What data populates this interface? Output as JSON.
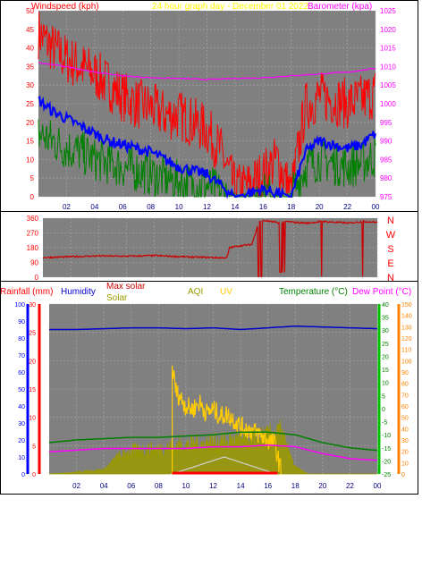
{
  "colors": {
    "plot_bg": "#808080",
    "grid": "#a8a8a8",
    "wind_speed": "#ff0000",
    "wind_avg": "#008000",
    "wind_blue": "#0000ff",
    "barometer": "#ff00ff",
    "direction": "#cc0000",
    "rainfall": "#ff0000",
    "humidity": "#0000cc",
    "temperature": "#008000",
    "dew_point": "#ff8000",
    "solar": "#9a9a00",
    "max_solar": "#ff0000",
    "uv": "#ffcc00",
    "aqi": "#c8c800"
  },
  "chart_data": [
    {
      "type": "line",
      "title": "24 hour graph day - December 01 2022",
      "ylabel": "Windspeed (kph)",
      "y2label": "Barometer (kpa)",
      "x_ticks": [
        "02",
        "04",
        "06",
        "08",
        "10",
        "12",
        "14",
        "16",
        "18",
        "20",
        "22",
        "00"
      ],
      "ylim": [
        0,
        50
      ],
      "y_ticks": [
        "0",
        "5",
        "10",
        "15",
        "20",
        "25",
        "30",
        "35",
        "40",
        "45",
        "50"
      ],
      "y2lim": [
        975,
        1025
      ],
      "y2_ticks": [
        "975",
        "980",
        "985",
        "990",
        "995",
        "1000",
        "1005",
        "1010",
        "1015",
        "1020",
        "1025"
      ],
      "grid": true,
      "series": [
        {
          "key": "gust",
          "hours": [
            0,
            1,
            2,
            3,
            4,
            5,
            6,
            7,
            8,
            9,
            10,
            11,
            12,
            13,
            14,
            15,
            16,
            17,
            18,
            19,
            20,
            21,
            22,
            23,
            24
          ],
          "values": [
            44,
            40,
            37,
            35,
            33,
            30,
            27,
            25,
            24,
            22,
            22,
            20,
            18,
            12,
            2,
            3,
            6,
            10,
            1,
            24,
            27,
            26,
            25,
            26,
            28
          ]
        },
        {
          "key": "avg_blue",
          "hours": [
            0,
            1,
            2,
            3,
            4,
            5,
            6,
            7,
            8,
            9,
            10,
            11,
            12,
            13,
            14,
            15,
            16,
            17,
            18,
            19,
            20,
            21,
            22,
            23,
            24
          ],
          "values": [
            26,
            23,
            21,
            19,
            17,
            15,
            14,
            13,
            12,
            10,
            8,
            7,
            6,
            3,
            0,
            1,
            2,
            1,
            0,
            12,
            15,
            14,
            13,
            14,
            17
          ]
        },
        {
          "key": "avg_green",
          "hours": [
            0,
            1,
            2,
            3,
            4,
            5,
            6,
            7,
            8,
            9,
            10,
            11,
            12,
            13,
            14,
            15,
            16,
            17,
            18,
            19,
            20,
            21,
            22,
            23,
            24
          ],
          "values": [
            17,
            15,
            13,
            12,
            10,
            9,
            8,
            7,
            6,
            5,
            4,
            3,
            3,
            1,
            0,
            0,
            1,
            0,
            0,
            8,
            10,
            9,
            8,
            9,
            11
          ]
        },
        {
          "key": "barometer",
          "hours": [
            0,
            2,
            4,
            6,
            8,
            10,
            12,
            14,
            16,
            18,
            20,
            22,
            24
          ],
          "values": [
            1011,
            1010,
            1008.5,
            1007.5,
            1007,
            1006.8,
            1006.5,
            1006.8,
            1007,
            1007.5,
            1008,
            1008.5,
            1009.5
          ]
        }
      ]
    },
    {
      "type": "scatter",
      "y_ticks": [
        "0",
        "90",
        "180",
        "270",
        "360"
      ],
      "compass": [
        "N",
        "W",
        "S",
        "E",
        "N"
      ],
      "ylim": [
        0,
        360
      ],
      "series": [
        {
          "key": "direction",
          "hours": [
            0,
            2,
            4,
            6,
            8,
            10,
            12,
            13.2,
            13.4,
            14,
            15,
            15.5,
            16,
            17,
            17.5,
            18,
            19,
            20,
            21,
            22,
            23,
            24
          ],
          "values": [
            120,
            125,
            130,
            128,
            132,
            125,
            120,
            118,
            180,
            190,
            200,
            340,
            345,
            330,
            340,
            335,
            330,
            340,
            335,
            330,
            340,
            335
          ]
        }
      ]
    },
    {
      "type": "line",
      "y_axes": [
        {
          "label": "Rainfall (mm)",
          "ticks": [
            "0",
            "10",
            "20",
            "30",
            "40",
            "50",
            "60",
            "70",
            "80",
            "90",
            "100"
          ],
          "lim": [
            0,
            100
          ]
        },
        {
          "label": "Humidity",
          "ticks": [
            "0",
            "5",
            "10",
            "15",
            "20",
            "25",
            "30"
          ],
          "lim": [
            0,
            30
          ]
        },
        {
          "label": "Temperature (°C)",
          "ticks": [
            "-25",
            "-20",
            "-15",
            "-10",
            "-5",
            "0",
            "5",
            "10",
            "15",
            "20",
            "25",
            "30",
            "35",
            "40"
          ],
          "lim": [
            -25,
            40
          ]
        },
        {
          "label": "Dew Point (°C)",
          "ticks": [
            "0",
            "10",
            "20",
            "30",
            "40",
            "50",
            "60",
            "70",
            "80",
            "90",
            "100",
            "110",
            "120",
            "130",
            "140",
            "150"
          ],
          "lim": [
            0,
            150
          ]
        }
      ],
      "legend": [
        "Max solar",
        "Solar",
        "AQI",
        "UV"
      ],
      "x_ticks": [
        "02",
        "04",
        "06",
        "08",
        "10",
        "12",
        "14",
        "16",
        "18",
        "20",
        "22",
        "00"
      ],
      "series": [
        {
          "key": "humidity",
          "hours": [
            0,
            2,
            4,
            6,
            8,
            10,
            12,
            14,
            16,
            18,
            20,
            22,
            24
          ],
          "values": [
            85,
            85,
            85.5,
            86,
            86,
            85.5,
            86,
            85,
            86,
            87,
            86.5,
            86,
            85.5
          ]
        },
        {
          "key": "temperature",
          "hours": [
            0,
            2,
            4,
            6,
            8,
            10,
            12,
            14,
            16,
            18,
            20,
            22,
            24
          ],
          "values": [
            -13,
            -12,
            -11.5,
            -11,
            -11,
            -10.5,
            -10,
            -9,
            -9,
            -10,
            -13,
            -15,
            -16
          ]
        },
        {
          "key": "dew_point",
          "hours": [
            0,
            2,
            4,
            6,
            8,
            10,
            12,
            14,
            16,
            18,
            20,
            22,
            24
          ],
          "values": [
            13,
            14,
            15,
            15,
            15,
            15,
            16,
            16,
            17,
            16,
            12,
            9,
            8
          ]
        },
        {
          "key": "solar",
          "hours": [
            0,
            4,
            5,
            6,
            8,
            10,
            12,
            14,
            16,
            17,
            17.5,
            18,
            19,
            24
          ],
          "values": [
            0,
            2,
            8,
            11,
            12,
            14,
            15,
            16,
            18,
            20,
            10,
            3,
            0,
            0
          ]
        },
        {
          "key": "max_solar",
          "hours": [
            8.9,
            9.0,
            12.8,
            16.6,
            16.7
          ],
          "values": [
            0,
            0,
            10,
            0,
            0
          ]
        },
        {
          "key": "uv",
          "hours": [
            9,
            9.3,
            9.6,
            10,
            10.5,
            11,
            11.5,
            12,
            12.5,
            13,
            13.5,
            14,
            15,
            16,
            16.5,
            17
          ],
          "values": [
            62,
            48,
            45,
            40,
            38,
            42,
            36,
            38,
            34,
            35,
            32,
            28,
            25,
            20,
            18,
            0
          ]
        }
      ]
    }
  ]
}
